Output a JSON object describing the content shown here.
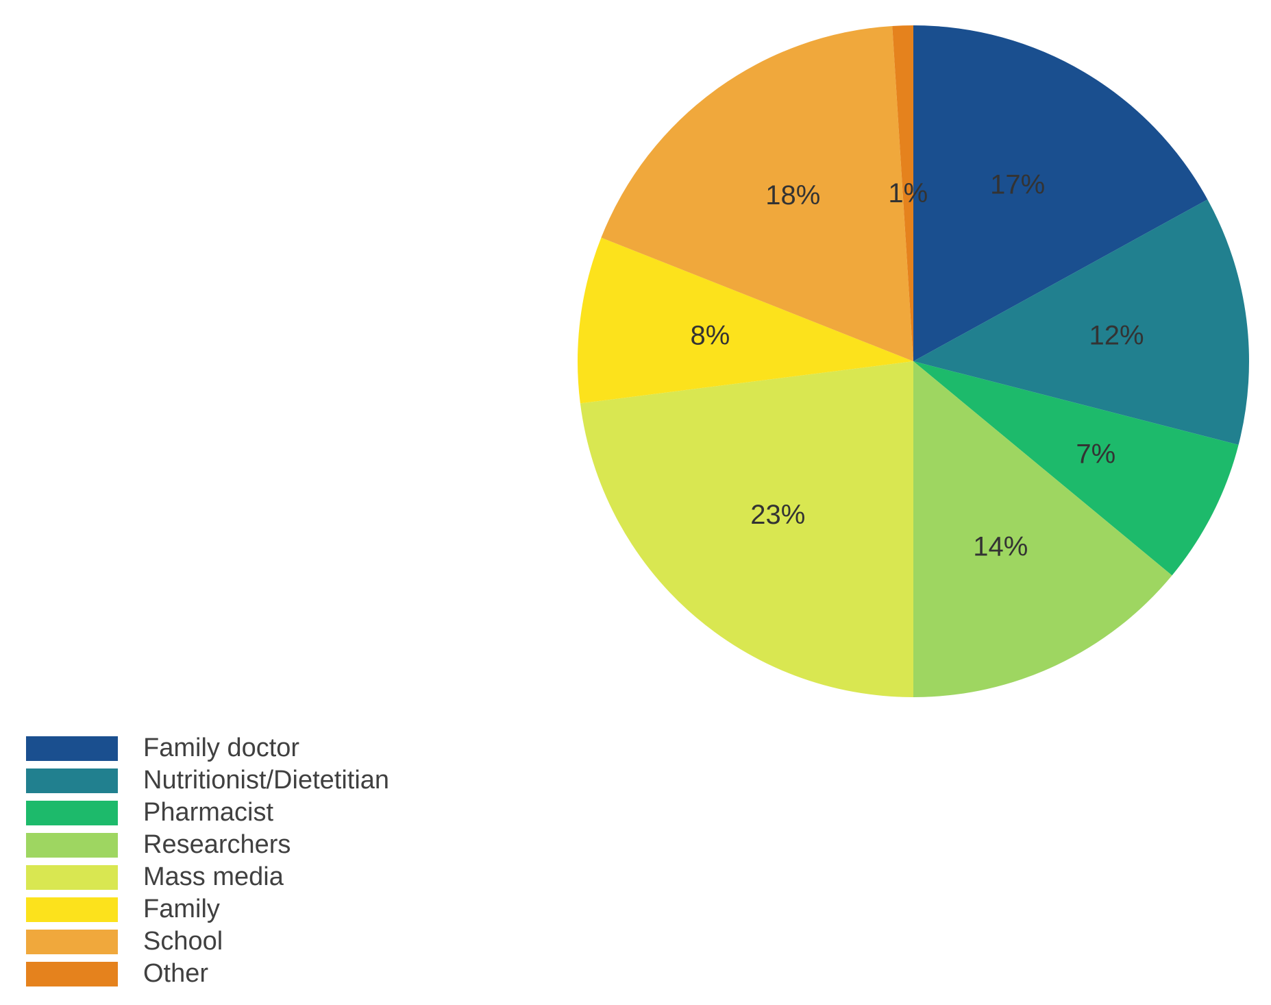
{
  "chart_data": {
    "type": "pie",
    "categories": [
      "Family doctor",
      "Nutritionist/Dietetitian",
      "Pharmacist",
      "Researchers",
      "Mass media",
      "Family",
      "School",
      "Other"
    ],
    "values": [
      17,
      12,
      7,
      14,
      23,
      8,
      18,
      1
    ],
    "value_labels": [
      "17%",
      "12%",
      "7%",
      "14%",
      "23%",
      "8%",
      "18%",
      "1%"
    ],
    "colors": [
      "#1a4f8f",
      "#21808f",
      "#1dba6b",
      "#9ed661",
      "#d9e751",
      "#fce21c",
      "#f0a83c",
      "#e5821d"
    ],
    "start_angle": "top (12 o'clock), clockwise",
    "legend_position": "bottom-left"
  }
}
